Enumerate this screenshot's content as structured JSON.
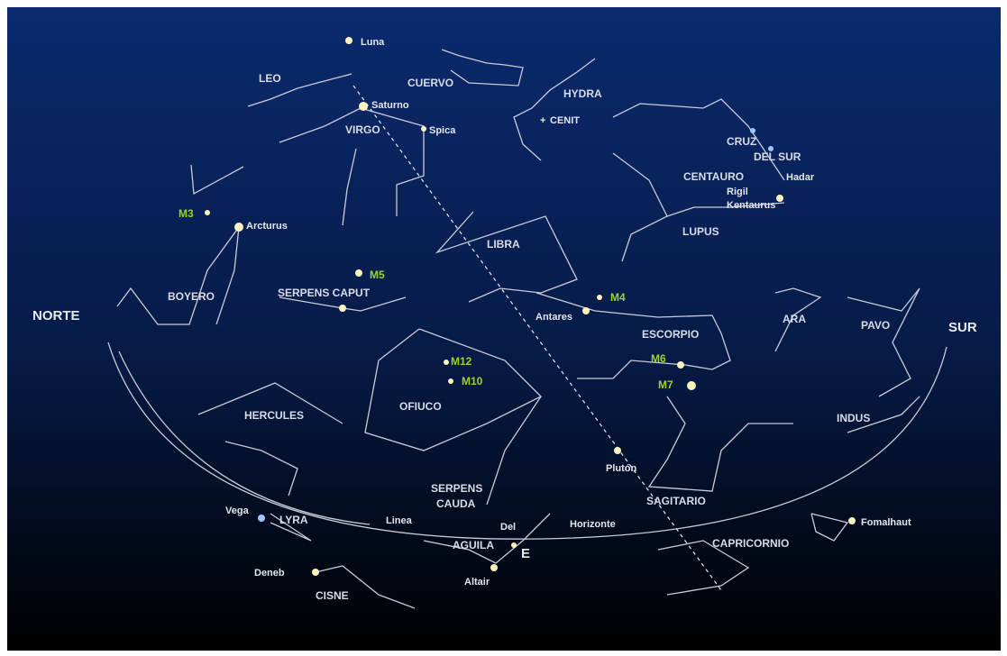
{
  "constellations": [
    "LEO",
    "CUERVO",
    "HYDRA",
    "VIRGO",
    "CRUZ",
    "DEL SUR",
    "CENTAURO",
    "LIBRA",
    "LUPUS",
    "BOYERO",
    "SERPENS CAPUT",
    "ARA",
    "PAVO",
    "ESCORPIO",
    "OFIUCO",
    "HERCULES",
    "INDUS",
    "SERPENS",
    "CAUDA",
    "SAGITARIO",
    "LYRA",
    "AGUILA",
    "CAPRICORNIO",
    "CISNE"
  ],
  "stars": [
    "Luna",
    "Saturno",
    "Spica",
    "CENIT",
    "Arcturus",
    "Antares",
    "Hadar",
    "Rigil",
    "Kentaurus",
    "Plutón",
    "Vega",
    "Deneb",
    "Altair",
    "Fomalhaut",
    "Del"
  ],
  "objects": [
    "M3",
    "M5",
    "M4",
    "M12",
    "M10",
    "M6",
    "M7"
  ],
  "directions": [
    "NORTE",
    "SUR",
    "E"
  ],
  "lines": [
    "Linea",
    "Horizonte"
  ]
}
